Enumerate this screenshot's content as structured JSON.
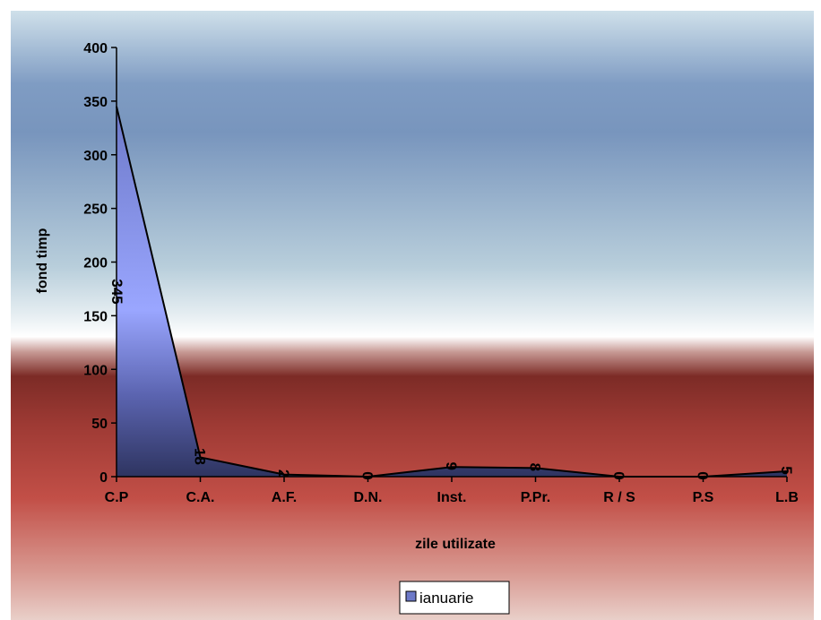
{
  "chart_data": {
    "type": "area",
    "categories": [
      "C.P",
      "C.A.",
      "A.F.",
      "D.N.",
      "Inst.",
      "P.Pr.",
      "R / S",
      "P.S",
      "L.B"
    ],
    "series": [
      {
        "name": "ianuarie",
        "values": [
          345,
          18,
          2,
          0,
          9,
          8,
          0,
          0,
          5
        ]
      }
    ],
    "xlabel": "zile utilizate",
    "ylabel": "fond timp",
    "ylim": [
      0,
      400
    ],
    "yticks": [
      0,
      50,
      100,
      150,
      200,
      250,
      300,
      350,
      400
    ],
    "yticks_labels": [
      "0",
      "50",
      "100",
      "150",
      "200",
      "250",
      "300",
      "350",
      "400"
    ],
    "data_labels": [
      "345",
      "18",
      "2",
      "0",
      "9",
      "8",
      "0",
      "0",
      "5"
    ],
    "legend_position": "bottom",
    "grid": false,
    "colors": {
      "series_fill_top": "#9aa6ff",
      "series_fill_bottom": "#2e3460",
      "series_line": "#000000"
    }
  }
}
